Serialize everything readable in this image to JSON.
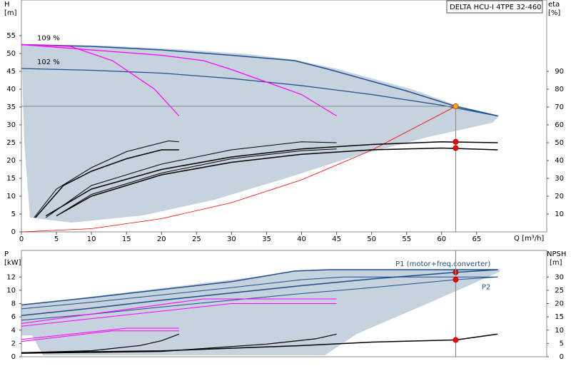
{
  "chart_data": [
    {
      "type": "line",
      "title": "DELTA HCU-I 4TPE 32-460",
      "xlabel": "Q [m³/h]",
      "ylabel": "H",
      "yunit": "[m]",
      "y2label": "eta",
      "y2unit": "[%]",
      "xlim": [
        0,
        75
      ],
      "xticks": [
        0,
        5,
        10,
        15,
        20,
        25,
        30,
        35,
        40,
        45,
        50,
        55,
        60,
        65
      ],
      "ylim": [
        0,
        65
      ],
      "yticks": [
        0,
        5,
        10,
        15,
        20,
        25,
        30,
        35,
        40,
        45,
        50,
        55
      ],
      "y2lim": [
        0,
        130
      ],
      "y2ticks": [
        10,
        20,
        30,
        40,
        50,
        60,
        70,
        80,
        90
      ],
      "series": [
        {
          "name": "109 %",
          "label_at": "start",
          "style": "line",
          "color": "#1f4e8c",
          "width": 1.5,
          "x": [
            0,
            10,
            20,
            30,
            39,
            44,
            55,
            62,
            68
          ],
          "values": [
            52.5,
            52,
            51,
            49.5,
            48,
            45.5,
            39.5,
            35.2,
            32.5
          ]
        },
        {
          "name": "102 %",
          "label_at": "start",
          "style": "line",
          "color": "#1f4e8c",
          "width": 1.2,
          "x": [
            0,
            10,
            20,
            30,
            40,
            50,
            60,
            68
          ],
          "values": [
            45.8,
            45.3,
            44.5,
            43,
            41,
            38.5,
            35.5,
            32.5
          ]
        },
        {
          "style": "line",
          "color": "#ff00ff",
          "width": 1.2,
          "x": [
            0,
            7,
            13,
            19,
            22.5
          ],
          "values": [
            52.5,
            52,
            48,
            40,
            32.5
          ]
        },
        {
          "style": "line",
          "color": "#ff00ff",
          "width": 1.2,
          "x": [
            0,
            20,
            26,
            30,
            40,
            45
          ],
          "values": [
            52.5,
            49.5,
            48,
            45.5,
            38.5,
            32.5
          ]
        },
        {
          "style": "line",
          "color": "#ff0000",
          "width": 0.8,
          "x": [
            0,
            10,
            20,
            30,
            40,
            50,
            62
          ],
          "values": [
            0,
            0.9,
            3.7,
            8.2,
            14.6,
            22.9,
            35.2
          ]
        },
        {
          "style": "line",
          "axis": "y2",
          "color": "#000000",
          "width": 1,
          "x": [
            1.8,
            5,
            10,
            15,
            21,
            22.5
          ],
          "values": [
            8,
            24,
            36,
            45,
            51,
            50.5
          ]
        },
        {
          "style": "line",
          "axis": "y2",
          "color": "#000000",
          "width": 1.5,
          "x": [
            2,
            6,
            10,
            15,
            20,
            22.5
          ],
          "values": [
            8,
            26,
            34,
            41,
            46,
            46
          ]
        },
        {
          "style": "line",
          "axis": "y2",
          "color": "#000000",
          "width": 1,
          "x": [
            3.5,
            10,
            20,
            30,
            40,
            45
          ],
          "values": [
            8,
            26,
            38,
            46,
            50.5,
            50
          ]
        },
        {
          "style": "line",
          "axis": "y2",
          "color": "#000000",
          "width": 1.5,
          "x": [
            3.5,
            10,
            20,
            30,
            40,
            50,
            60,
            68
          ],
          "values": [
            9,
            24,
            35,
            42,
            46.5,
            49,
            50.5,
            50
          ]
        },
        {
          "style": "line",
          "axis": "y2",
          "color": "#000000",
          "width": 1,
          "x": [
            5,
            10,
            20,
            30,
            40,
            45
          ],
          "values": [
            9,
            21,
            33,
            41,
            45.5,
            46.5
          ]
        },
        {
          "style": "line",
          "axis": "y2",
          "color": "#000000",
          "width": 1.5,
          "x": [
            5,
            10,
            20,
            30,
            40,
            50,
            60,
            68
          ],
          "values": [
            9,
            20,
            32,
            39,
            43.5,
            46,
            47,
            46
          ]
        },
        {
          "style": "markers",
          "guides": true,
          "color": "#ffb000",
          "stroke": "#e04000",
          "x": [
            62
          ],
          "values": [
            35.2
          ]
        },
        {
          "style": "markers",
          "axis": "y2",
          "color": "#ff0000",
          "stroke": "#c00000",
          "x": [
            62,
            62
          ],
          "values": [
            50.5,
            47
          ]
        }
      ]
    },
    {
      "type": "line",
      "ylabel": "P",
      "yunit": "[kW]",
      "y2label": "NPSH",
      "y2unit": "[m]",
      "xlim": [
        0,
        75
      ],
      "ylim": [
        0,
        16
      ],
      "yticks": [
        0,
        2,
        4,
        6,
        8,
        10,
        12
      ],
      "y2lim": [
        0,
        40
      ],
      "y2ticks": [
        0,
        5,
        10,
        15,
        20,
        25,
        30
      ],
      "series": [
        {
          "style": "line",
          "color": "#1f4e8c",
          "width": 1.5,
          "x": [
            0,
            10,
            20,
            30,
            39,
            44,
            55,
            68
          ],
          "values": [
            7.8,
            8.9,
            10.1,
            11.3,
            12.9,
            13.1,
            13.1,
            13.1
          ]
        },
        {
          "style": "line",
          "color": "#1f4e8c",
          "width": 1,
          "x": [
            0,
            10,
            20,
            30,
            40,
            46,
            68
          ],
          "values": [
            7.2,
            8.2,
            9.3,
            10.4,
            11.6,
            12,
            12
          ]
        },
        {
          "name": "P1 (motor+freq.converter)",
          "label_at": "end",
          "style": "line",
          "color": "#1f4e8c",
          "width": 1.5,
          "x": [
            0,
            10,
            20,
            30,
            40,
            50,
            62,
            68
          ],
          "values": [
            6.2,
            7.3,
            8.5,
            9.6,
            10.7,
            11.7,
            12.7,
            13.1
          ]
        },
        {
          "name": "P2",
          "label_at": "end",
          "style": "line",
          "color": "#1f4e8c",
          "width": 1,
          "x": [
            0,
            10,
            20,
            30,
            40,
            50,
            62,
            68
          ],
          "values": [
            5.5,
            6.4,
            7.5,
            8.5,
            9.5,
            10.4,
            11.6,
            12
          ]
        },
        {
          "style": "line",
          "color": "#ff00ff",
          "width": 1,
          "x": [
            0,
            26,
            45
          ],
          "values": [
            5,
            8.7,
            8.7
          ]
        },
        {
          "style": "line",
          "color": "#ff00ff",
          "width": 1,
          "x": [
            0,
            30,
            45
          ],
          "values": [
            4.6,
            8,
            8
          ]
        },
        {
          "style": "line",
          "color": "#ff00ff",
          "width": 1,
          "x": [
            0,
            15,
            22.5
          ],
          "values": [
            2.6,
            4.3,
            4.3
          ]
        },
        {
          "style": "line",
          "color": "#ff00ff",
          "width": 1,
          "x": [
            0,
            13,
            22.5
          ],
          "values": [
            2.3,
            3.9,
            3.9
          ]
        },
        {
          "style": "line",
          "color": "#000000",
          "width": 1.2,
          "x": [
            0,
            10,
            17,
            20,
            22.5
          ],
          "values": [
            0.6,
            0.9,
            1.7,
            2.4,
            3.4
          ]
        },
        {
          "style": "line",
          "color": "#000000",
          "width": 1.2,
          "x": [
            0,
            20,
            35,
            42,
            45
          ],
          "values": [
            0.5,
            0.8,
            1.9,
            2.7,
            3.4
          ]
        },
        {
          "style": "line",
          "axis": "y2",
          "color": "#000000",
          "width": 1.5,
          "x": [
            0,
            20,
            40,
            50,
            62,
            68
          ],
          "values": [
            1.5,
            2.2,
            4.2,
            5.5,
            6.3,
            8.5
          ]
        },
        {
          "style": "markers",
          "guides": true,
          "color": "#ff0000",
          "stroke": "#c00000",
          "x": [
            62,
            62
          ],
          "values": [
            12.7,
            11.6
          ]
        },
        {
          "style": "markers",
          "axis": "y2",
          "color": "#ff0000",
          "stroke": "#c00000",
          "x": [
            62
          ],
          "values": [
            6.3
          ]
        }
      ]
    }
  ]
}
